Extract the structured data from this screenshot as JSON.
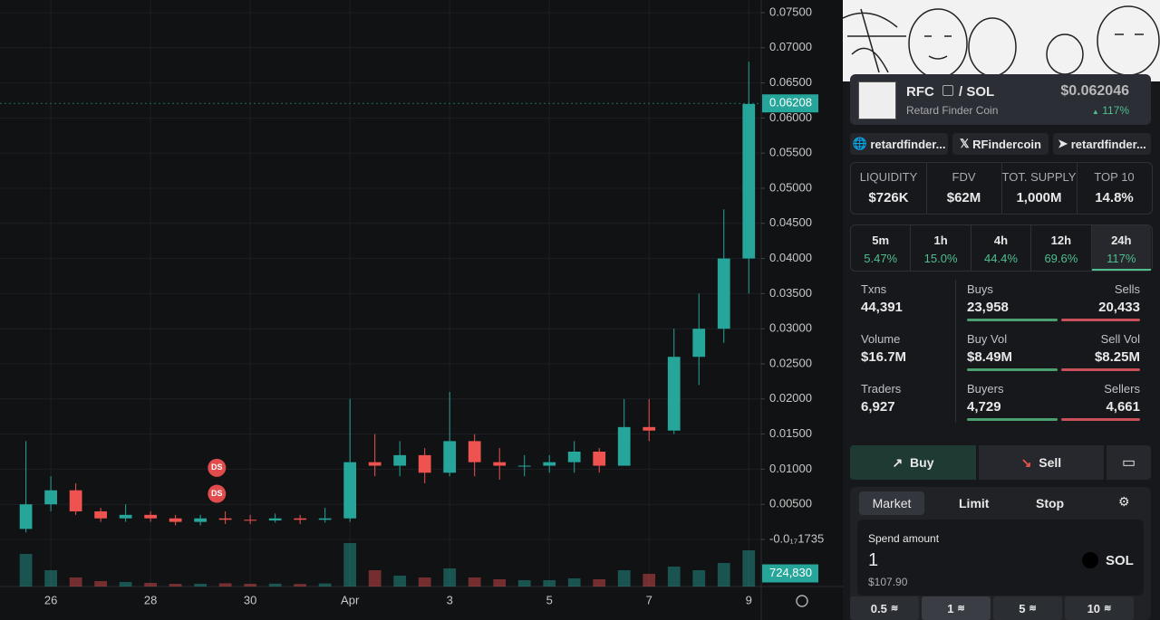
{
  "chart_data": {
    "type": "candlestick",
    "x": [
      -0.5,
      0,
      0.5,
      1,
      1.5,
      2,
      2.5,
      3,
      3.5,
      4,
      4.5,
      5,
      5.5,
      6,
      6.5,
      7,
      7.5,
      8,
      8.5,
      9,
      9.5,
      10,
      10.5,
      11,
      11.5,
      12,
      12.5,
      13,
      13.5,
      14
    ],
    "open": [
      0.0015,
      0.005,
      0.007,
      0.004,
      0.003,
      0.0035,
      0.003,
      0.0025,
      0.003,
      0.0028,
      0.0027,
      0.003,
      0.0028,
      0.003,
      0.011,
      0.0105,
      0.012,
      0.0095,
      0.014,
      0.011,
      0.0105,
      0.0105,
      0.011,
      0.0125,
      0.0105,
      0.016,
      0.0155,
      0.026,
      0.03,
      0.04
    ],
    "close": [
      0.005,
      0.007,
      0.004,
      0.003,
      0.0035,
      0.003,
      0.0025,
      0.003,
      0.0028,
      0.0027,
      0.003,
      0.0028,
      0.003,
      0.011,
      0.0105,
      0.012,
      0.0095,
      0.014,
      0.011,
      0.0105,
      0.0105,
      0.011,
      0.0125,
      0.0105,
      0.016,
      0.0155,
      0.026,
      0.03,
      0.04,
      0.062
    ],
    "high": [
      0.014,
      0.009,
      0.008,
      0.0045,
      0.005,
      0.004,
      0.0035,
      0.0035,
      0.004,
      0.0035,
      0.0037,
      0.0035,
      0.0045,
      0.02,
      0.015,
      0.014,
      0.013,
      0.021,
      0.015,
      0.013,
      0.012,
      0.012,
      0.014,
      0.013,
      0.02,
      0.02,
      0.03,
      0.035,
      0.047,
      0.068
    ],
    "low": [
      0.001,
      0.004,
      0.0035,
      0.0025,
      0.0025,
      0.0025,
      0.002,
      0.002,
      0.0022,
      0.0022,
      0.0024,
      0.0022,
      0.0024,
      0.0025,
      0.009,
      0.009,
      0.008,
      0.009,
      0.009,
      0.0085,
      0.009,
      0.0095,
      0.0095,
      0.0095,
      0.0105,
      0.014,
      0.015,
      0.022,
      0.028,
      0.035
    ],
    "volume": [
      1800000,
      900000,
      500000,
      300000,
      250000,
      200000,
      150000,
      150000,
      180000,
      150000,
      160000,
      140000,
      170000,
      2400000,
      900000,
      600000,
      500000,
      1000000,
      500000,
      400000,
      350000,
      350000,
      450000,
      400000,
      900000,
      700000,
      1100000,
      900000,
      1300000,
      2000000
    ],
    "up_color": "#26a69a",
    "down_color": "#ef5350",
    "xlim": [
      -1.02,
      14.25
    ],
    "xticks": [
      {
        "value": 0,
        "label": "26"
      },
      {
        "value": 2,
        "label": "28"
      },
      {
        "value": 4,
        "label": "30"
      },
      {
        "value": 6,
        "label": "Apr"
      },
      {
        "value": 8,
        "label": "3"
      },
      {
        "value": 10,
        "label": "5"
      },
      {
        "value": 12,
        "label": "7"
      },
      {
        "value": 14,
        "label": "9"
      }
    ],
    "ylim": [
      -0.0067,
      0.0768
    ],
    "yticks": [
      {
        "value": 0.075,
        "label": "0.07500"
      },
      {
        "value": 0.07,
        "label": "0.07000"
      },
      {
        "value": 0.065,
        "label": "0.06500"
      },
      {
        "value": 0.06,
        "label": "0.06000"
      },
      {
        "value": 0.055,
        "label": "0.05500"
      },
      {
        "value": 0.05,
        "label": "0.05000"
      },
      {
        "value": 0.045,
        "label": "0.04500"
      },
      {
        "value": 0.04,
        "label": "0.04000"
      },
      {
        "value": 0.035,
        "label": "0.03500"
      },
      {
        "value": 0.03,
        "label": "0.03000"
      },
      {
        "value": 0.025,
        "label": "0.02500"
      },
      {
        "value": 0.02,
        "label": "0.02000"
      },
      {
        "value": 0.015,
        "label": "0.01500"
      },
      {
        "value": 0.01,
        "label": "0.01000"
      },
      {
        "value": 0.005,
        "label": "0.00500"
      },
      {
        "value": 0,
        "label": "-0.0₁₇1735"
      }
    ],
    "volume_ylim": [
      0,
      3000000
    ],
    "last_price": {
      "value": 0.06208,
      "label": "0.06208"
    },
    "last_volume": {
      "value": 724830,
      "label": "724,830"
    },
    "markers": [
      {
        "x": 3.33,
        "value": 0.0102,
        "label": "DS"
      },
      {
        "x": 3.33,
        "value": 0.0065,
        "label": "DS"
      }
    ],
    "grid": true
  },
  "token": {
    "symbol": "RFC",
    "pair": "/ SOL",
    "name": "Retard Finder Coin",
    "price": "$0.062046",
    "change": "117%"
  },
  "links": [
    "retardfinder...",
    "RFindercoin",
    "retardfinder..."
  ],
  "stats": [
    {
      "label": "LIQUIDITY",
      "value": "$726K"
    },
    {
      "label": "FDV",
      "value": "$62M"
    },
    {
      "label": "TOT. SUPPLY",
      "value": "1,000M"
    },
    {
      "label": "TOP 10",
      "value": "14.8%"
    }
  ],
  "timeframes": [
    {
      "label": "5m",
      "value": "5.47%"
    },
    {
      "label": "1h",
      "value": "15.0%"
    },
    {
      "label": "4h",
      "value": "44.4%"
    },
    {
      "label": "12h",
      "value": "69.6%"
    },
    {
      "label": "24h",
      "value": "117%"
    }
  ],
  "activity": [
    {
      "label": "Txns",
      "value": "44,391",
      "left_label": "Buys",
      "left_value": "23,958",
      "right_label": "Sells",
      "right_value": "20,433"
    },
    {
      "label": "Volume",
      "value": "$16.7M",
      "left_label": "Buy Vol",
      "left_value": "$8.49M",
      "right_label": "Sell Vol",
      "right_value": "$8.25M"
    },
    {
      "label": "Traders",
      "value": "6,927",
      "left_label": "Buyers",
      "left_value": "4,729",
      "right_label": "Sellers",
      "right_value": "4,661"
    }
  ],
  "trade": {
    "buy": "Buy",
    "sell": "Sell",
    "tabs": [
      "Market",
      "Limit",
      "Stop"
    ],
    "spend_label": "Spend amount",
    "amount": "1",
    "currency": "SOL",
    "usd": "$107.90",
    "quick": [
      "0.5",
      "1",
      "5",
      "10"
    ]
  }
}
